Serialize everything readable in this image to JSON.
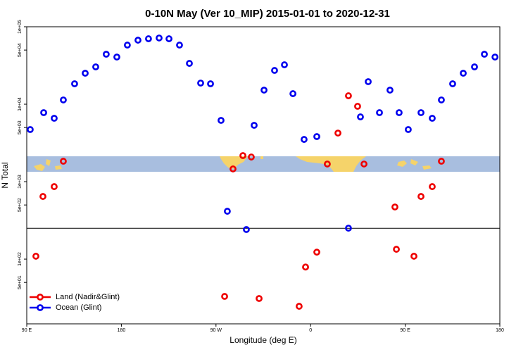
{
  "chart_data": {
    "type": "scatter",
    "title": "0-10N May (Ver 10_MIP)   2015-01-01 to 2020-12-31",
    "x_label": "Longitude (deg E)",
    "y_label": "N Total",
    "log_y": true,
    "ylim": [
      14.6,
      100000
    ],
    "yticks": [
      {
        "value": 100000,
        "label": "1e+05"
      },
      {
        "value": 50000,
        "label": "5e+04"
      },
      {
        "value": 10000,
        "label": "1e+04"
      },
      {
        "value": 5000,
        "label": "5e+03"
      },
      {
        "value": 1000,
        "label": "1e+03"
      },
      {
        "value": 500,
        "label": "5e+02"
      },
      {
        "value": 100,
        "label": "1e+02"
      },
      {
        "value": 50,
        "label": "5e+01"
      }
    ],
    "xlim": [
      90,
      540
    ],
    "xticks": [
      {
        "value": 90,
        "label": "90 E"
      },
      {
        "value": 180,
        "label": "180"
      },
      {
        "value": 270,
        "label": "90 W"
      },
      {
        "value": 360,
        "label": "0"
      },
      {
        "value": 450,
        "label": "90 E"
      },
      {
        "value": 540,
        "label": "180"
      }
    ],
    "hline": 250,
    "legend": "bottom-left",
    "series": [
      {
        "name": "Land (Nadir&Glint)",
        "color": "#ee0000",
        "x": [
          98.7,
          105.4,
          116.1,
          124.8,
          278.2,
          286.2,
          295.6,
          303.6,
          311.0,
          349.1,
          355.2,
          365.9,
          375.9,
          386.0,
          396.0,
          404.7,
          410.8,
          440.2,
          441.6,
          458.3,
          465.0,
          475.7,
          484.4
        ],
        "values": [
          109,
          644,
          863,
          1835,
          33,
          1460,
          2170,
          2080,
          31,
          24.6,
          79,
          123,
          1690,
          4240,
          12850,
          9400,
          1690,
          471,
          134,
          109,
          644,
          863,
          1835
        ]
      },
      {
        "name": "Ocean (Glint)",
        "color": "#0000ee",
        "x": [
          93.3,
          106.1,
          116.1,
          124.8,
          135.5,
          145.6,
          155.6,
          165.6,
          175.7,
          185.7,
          195.8,
          205.8,
          215.9,
          225.3,
          235.3,
          244.7,
          255.4,
          264.8,
          274.8,
          280.8,
          298.9,
          306.3,
          315.7,
          325.7,
          335.1,
          343.2,
          353.8,
          365.9,
          396.0,
          407.4,
          414.8,
          425.5,
          435.5,
          444.2,
          452.9,
          465.0,
          475.7,
          484.4,
          495.1,
          505.2,
          515.9,
          525.3,
          535.4
        ],
        "values": [
          4710,
          7780,
          6580,
          11350,
          18360,
          25120,
          30330,
          44200,
          40640,
          58000,
          67100,
          69980,
          71600,
          69980,
          58000,
          33650,
          18750,
          18360,
          6180,
          415,
          241,
          5340,
          15200,
          27300,
          32280,
          13680,
          3510,
          3820,
          251,
          6860,
          19540,
          7780,
          15200,
          7780,
          4710,
          7780,
          6580,
          11350,
          18360,
          25120,
          30330,
          44200,
          40640
        ]
      }
    ]
  }
}
